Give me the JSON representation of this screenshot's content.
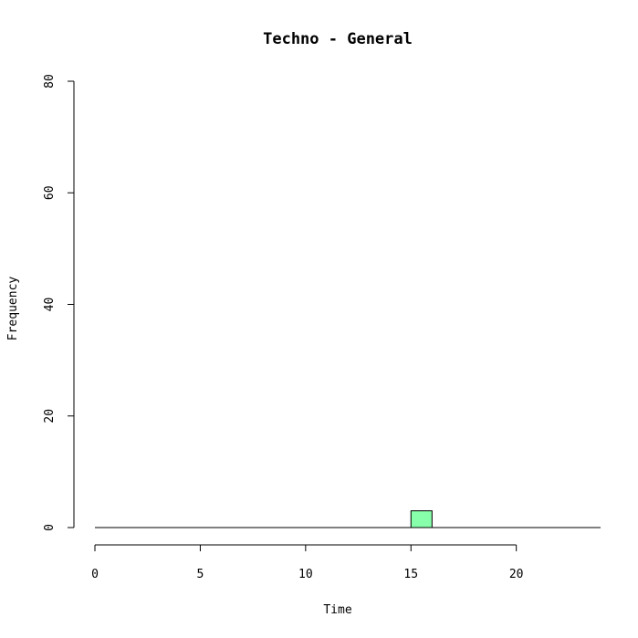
{
  "chart_data": {
    "type": "bar",
    "title": "Techno - General",
    "xlabel": "Time",
    "ylabel": "Frequency",
    "xlim": [
      0,
      24
    ],
    "ylim": [
      0,
      80
    ],
    "x_ticks": [
      0,
      5,
      10,
      15,
      20
    ],
    "y_ticks": [
      0,
      20,
      40,
      60,
      80
    ],
    "bin_width": 1,
    "bins": [
      {
        "start": 15,
        "end": 16,
        "value": 3
      }
    ],
    "baseline_span": [
      0,
      24
    ],
    "bar_color": "#88ffaa",
    "grid": false,
    "legend": "none"
  }
}
